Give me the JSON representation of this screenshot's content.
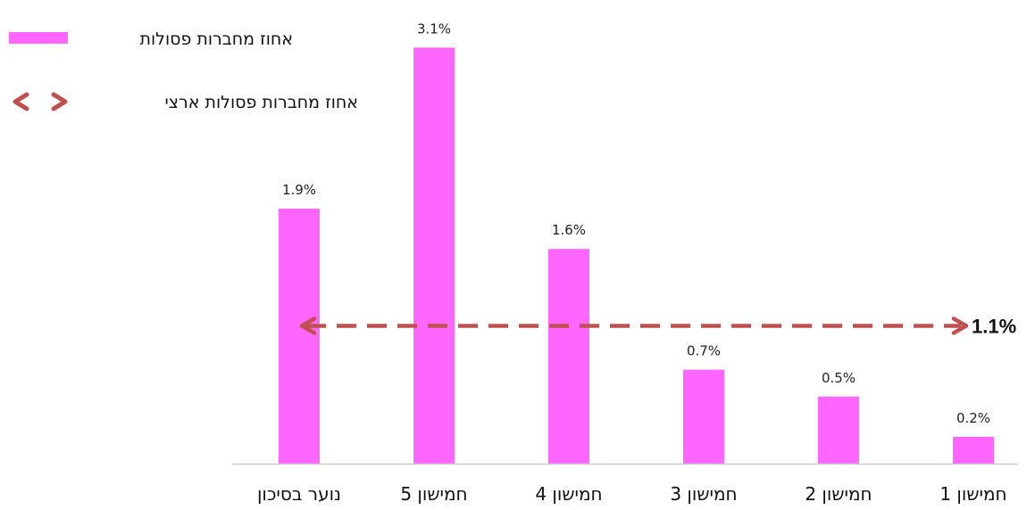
{
  "chart_data": {
    "type": "bar",
    "categories": [
      "נוער בסיכון",
      "חמישון 5",
      "חמישון 4",
      "חמישון 3",
      "חמישון 2",
      "חמישון 1"
    ],
    "series": [
      {
        "name": "אחוז מחברות פסולות",
        "values": [
          1.9,
          3.1,
          1.6,
          0.7,
          0.5,
          0.2
        ],
        "data_labels": [
          "1.9%",
          "3.1%",
          "1.6%",
          "0.7%",
          "0.5%",
          "0.2%"
        ],
        "color": "#ff66ff"
      }
    ],
    "reference_line": {
      "name": "אחוז מחברות פסולות ארצי",
      "value": 1.1,
      "label": "1.1%",
      "color": "#c0504d",
      "style": "dashed-double-arrow"
    },
    "ylim": [
      0,
      3.3
    ],
    "grid": false,
    "legend": "top-left"
  },
  "legend": {
    "bars_label": "אחוז מחברות פסולות",
    "line_label": "אחוז מחברות פסולות ארצי"
  }
}
